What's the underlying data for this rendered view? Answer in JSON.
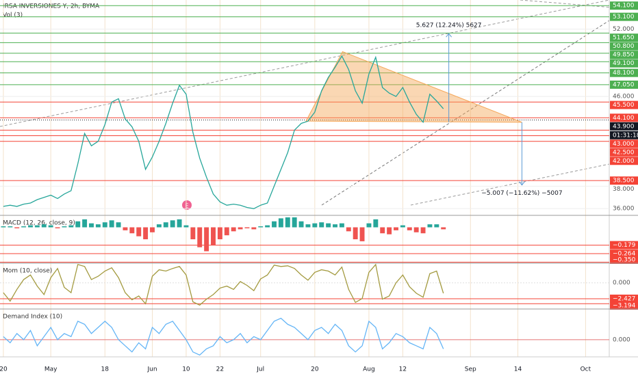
{
  "chart_data": [
    {
      "type": "line",
      "title": "IRSA INVERSIONES Y, 2h, BYMA",
      "subtitle": "Vol (3)",
      "color": "#26a69a",
      "categories": [
        "20",
        null,
        null,
        null,
        null,
        null,
        null,
        "May",
        null,
        null,
        null,
        null,
        null,
        null,
        null,
        "18",
        null,
        null,
        null,
        null,
        null,
        null,
        "Jun",
        null,
        null,
        null,
        null,
        "10",
        null,
        null,
        null,
        null,
        "22",
        null,
        null,
        null,
        null,
        null,
        "Jul",
        null,
        null,
        null,
        null,
        null,
        null,
        null,
        "20",
        null,
        null,
        null,
        null,
        null,
        null,
        null,
        "Aug",
        null,
        null,
        null,
        null,
        "12",
        null,
        null,
        null,
        null,
        null,
        null,
        null,
        null,
        null,
        "Sep",
        null,
        null,
        null,
        null,
        null,
        null,
        "14",
        null,
        null,
        null,
        null,
        null,
        null,
        null,
        null,
        null,
        "Oct",
        null,
        null,
        null
      ],
      "values": [
        36.2,
        36.3,
        36.2,
        36.4,
        36.5,
        36.8,
        37.0,
        37.2,
        36.9,
        37.3,
        37.6,
        40.0,
        42.7,
        41.6,
        42.0,
        43.5,
        45.5,
        45.8,
        44.0,
        43.3,
        42.0,
        39.5,
        40.6,
        42.0,
        43.6,
        45.4,
        47.0,
        46.2,
        42.8,
        40.5,
        38.8,
        37.3,
        36.6,
        36.3,
        36.4,
        36.3,
        36.1,
        36.0,
        36.3,
        36.5,
        38.0,
        39.5,
        41.0,
        43.0,
        43.6,
        43.8,
        44.6,
        46.5,
        47.7,
        48.6,
        49.6,
        48.4,
        46.5,
        45.4,
        48.0,
        49.5,
        46.8,
        46.3,
        46.0,
        46.8,
        45.5,
        44.4,
        43.7,
        46.2,
        45.6,
        44.9,
        null,
        null,
        null,
        null,
        null,
        null,
        null,
        null,
        null,
        null,
        null,
        null,
        null,
        null,
        null,
        null,
        null,
        null,
        null,
        null,
        null,
        null,
        null,
        null
      ],
      "ylim": [
        35.4,
        54.6
      ],
      "yticks": [
        {
          "value": 36,
          "label": "36.000"
        },
        {
          "value": 38,
          "label": "38.000"
        },
        {
          "value": 46,
          "label": "46.000"
        },
        {
          "value": 52,
          "label": "52.000"
        }
      ],
      "grid": true,
      "levels": [
        {
          "value": 54.1,
          "label": "54.100",
          "color": "#4caf50"
        },
        {
          "value": 53.1,
          "label": "53.100",
          "color": "#4caf50"
        },
        {
          "value": 51.65,
          "label": "51.650",
          "color": "#4caf50"
        },
        {
          "value": 50.8,
          "label": "50.800",
          "color": "#4caf50"
        },
        {
          "value": 49.85,
          "label": "49.850",
          "color": "#4caf50"
        },
        {
          "value": 49.1,
          "label": "49.100",
          "color": "#4caf50"
        },
        {
          "value": 48.1,
          "label": "48.100",
          "color": "#4caf50"
        },
        {
          "value": 47.05,
          "label": "47.050",
          "color": "#4caf50"
        },
        {
          "value": 45.5,
          "label": "45.500",
          "color": "#f44336"
        },
        {
          "value": 44.1,
          "label": "44.100",
          "color": "#f44336"
        },
        {
          "value": 43.9,
          "label": "43.900",
          "color": "#131722"
        },
        {
          "value": 43.0,
          "label": "43.000",
          "color": "#f44336"
        },
        {
          "value": 42.5,
          "label": "42.500",
          "color": "#f44336"
        },
        {
          "value": 42.0,
          "label": "42.000",
          "color": "#f44336"
        },
        {
          "value": 38.5,
          "label": "38.500",
          "color": "#f44336"
        }
      ],
      "countdown": "01:31:18",
      "pattern": [
        [
          44.7,
          43.8
        ],
        [
          50.1,
          50.0
        ],
        [
          76.6,
          43.7
        ]
      ],
      "projections": [
        {
          "x": 65.8,
          "from": 43.7,
          "to": 51.6,
          "label": "5.627 (12.24%) 5627"
        },
        {
          "x": 76.6,
          "from": 43.7,
          "to": 38.1,
          "label": "−5.007 (−11.62%) −5007"
        }
      ]
    },
    {
      "type": "bar",
      "title": "MACD (12, 26, close, 9)",
      "pos_color": "#26a69a",
      "neg_color": "#ef5350",
      "values": [
        0.01,
        0.01,
        -0.01,
        0.01,
        0.02,
        0.02,
        0.03,
        0.02,
        -0.01,
        0.01,
        0.02,
        0.06,
        0.08,
        0.04,
        0.03,
        0.05,
        0.07,
        0.05,
        -0.03,
        -0.06,
        -0.09,
        -0.12,
        -0.05,
        0.03,
        0.05,
        0.07,
        0.08,
        0.02,
        -0.12,
        -0.2,
        -0.24,
        -0.18,
        -0.12,
        -0.08,
        -0.04,
        -0.02,
        -0.01,
        -0.02,
        0.01,
        0.02,
        0.06,
        0.09,
        0.1,
        0.1,
        0.06,
        0.03,
        0.04,
        0.05,
        0.04,
        0.03,
        0.04,
        -0.04,
        -0.12,
        -0.14,
        0.04,
        0.08,
        -0.06,
        -0.07,
        -0.03,
        0.02,
        -0.03,
        -0.05,
        -0.06,
        0.03,
        0.03,
        -0.02,
        null,
        null,
        null,
        null,
        null,
        null,
        null,
        null,
        null,
        null,
        null,
        null,
        null,
        null,
        null,
        null,
        null,
        null,
        null,
        null,
        null,
        null,
        null,
        null
      ],
      "ylim": [
        -0.36,
        0.12
      ],
      "levels": [
        {
          "value": -0.179,
          "label": "−0.179",
          "color": "#f44336"
        },
        {
          "value": -0.264,
          "label": "−0.264",
          "color": "#f44336"
        },
        {
          "value": -0.35,
          "label": "−0.350",
          "color": "#f44336"
        }
      ]
    },
    {
      "type": "line",
      "title": "Mom (10, close)",
      "color": "#a39a3f",
      "values": [
        -1.5,
        -2.8,
        -1.0,
        0.5,
        1.2,
        -0.5,
        -1.8,
        0.8,
        2.2,
        -0.7,
        -1.5,
        2.8,
        2.5,
        0.5,
        1.0,
        1.8,
        2.3,
        0.8,
        -1.5,
        -2.6,
        -2.0,
        -3.2,
        1.0,
        2.0,
        1.8,
        2.2,
        2.5,
        1.2,
        -2.9,
        -3.4,
        -2.5,
        -1.8,
        -0.8,
        -0.5,
        -1.0,
        0.2,
        -0.4,
        -1.2,
        0.6,
        1.2,
        2.7,
        2.5,
        2.6,
        2.2,
        1.2,
        0.4,
        1.6,
        2.0,
        1.8,
        1.2,
        2.4,
        -1.0,
        -3.0,
        -2.4,
        1.6,
        2.8,
        -2.5,
        -2.0,
        0.0,
        1.2,
        -0.6,
        -1.6,
        -2.2,
        1.4,
        1.8,
        -1.6,
        null,
        null,
        null,
        null,
        null,
        null,
        null,
        null,
        null,
        null,
        null,
        null,
        null,
        null,
        null,
        null,
        null,
        null,
        null,
        null,
        null,
        null,
        null,
        null
      ],
      "ylim": [
        -4,
        3
      ],
      "yticks": [
        {
          "value": 0,
          "label": "0.000"
        }
      ],
      "levels": [
        {
          "value": -2.427,
          "label": "−2.427",
          "color": "#f44336"
        },
        {
          "value": -3.194,
          "label": "−3.194",
          "color": "#f44336"
        }
      ]
    },
    {
      "type": "line",
      "title": "Demand Index (10)",
      "color": "#64b5f6",
      "values": [
        0.05,
        -0.05,
        0.1,
        0.0,
        0.15,
        -0.1,
        0.05,
        0.2,
        0.0,
        0.1,
        0.05,
        0.3,
        0.25,
        0.1,
        0.2,
        0.3,
        0.2,
        0.0,
        -0.1,
        -0.2,
        -0.05,
        -0.15,
        0.2,
        0.1,
        0.25,
        0.3,
        0.15,
        0.0,
        -0.2,
        -0.25,
        -0.15,
        -0.1,
        0.05,
        -0.05,
        0.0,
        0.1,
        -0.05,
        0.05,
        0.0,
        0.15,
        0.3,
        0.35,
        0.25,
        0.2,
        0.1,
        0.0,
        0.15,
        0.2,
        0.1,
        0.25,
        0.15,
        -0.1,
        -0.2,
        -0.1,
        0.3,
        0.2,
        -0.15,
        -0.05,
        0.1,
        0.05,
        -0.05,
        -0.1,
        -0.15,
        0.2,
        0.1,
        -0.15,
        null,
        null,
        null,
        null,
        null,
        null,
        null,
        null,
        null,
        null,
        null,
        null,
        null,
        null,
        null,
        null,
        null,
        null,
        null,
        null,
        null,
        null,
        null,
        null
      ],
      "ylim": [
        -0.28,
        0.5
      ],
      "yticks": [
        {
          "value": 0,
          "label": "0.000"
        }
      ]
    }
  ]
}
